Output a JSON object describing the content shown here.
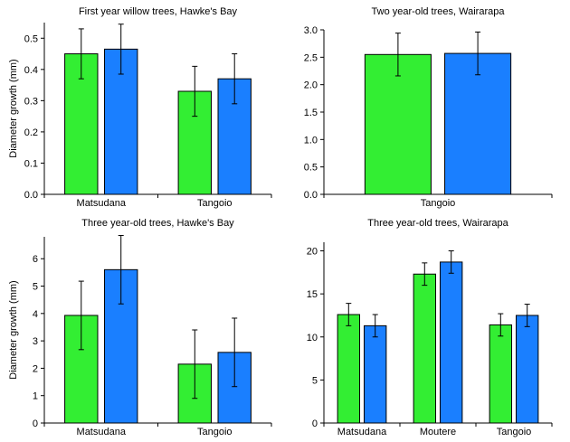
{
  "chart_data": [
    {
      "type": "bar",
      "title": "First year willow trees, Hawke's Bay",
      "ylabel": "Diameter growth (mm)",
      "categories": [
        "Matsudana",
        "Tangoio"
      ],
      "colors": [
        "#33ee33",
        "#1a7fff"
      ],
      "series": [
        {
          "values": [
            0.45,
            0.33
          ],
          "errors": [
            0.08,
            0.08
          ]
        },
        {
          "values": [
            0.465,
            0.37
          ],
          "errors": [
            0.08,
            0.08
          ]
        }
      ],
      "ylim": [
        0,
        0.55
      ],
      "yticks": [
        "0.0",
        "0.1",
        "0.2",
        "0.3",
        "0.4",
        "0.5"
      ],
      "ytick_values": [
        0,
        0.1,
        0.2,
        0.3,
        0.4,
        0.5
      ]
    },
    {
      "type": "bar",
      "title": "Two year-old trees, Wairarapa",
      "ylabel": "",
      "categories": [
        "Tangoio"
      ],
      "colors": [
        "#33ee33",
        "#1a7fff"
      ],
      "series": [
        {
          "values": [
            2.55
          ],
          "errors": [
            0.39
          ]
        },
        {
          "values": [
            2.57
          ],
          "errors": [
            0.39
          ]
        }
      ],
      "ylim": [
        0,
        3.0
      ],
      "yticks": [
        "0.0",
        "0.5",
        "1.0",
        "1.5",
        "2.0",
        "2.5",
        "3.0"
      ],
      "ytick_values": [
        0,
        0.5,
        1.0,
        1.5,
        2.0,
        2.5,
        3.0
      ]
    },
    {
      "type": "bar",
      "title": "Three year-old trees, Hawke's Bay",
      "ylabel": "Diameter growth (mm)",
      "categories": [
        "Matsudana",
        "Tangoio"
      ],
      "colors": [
        "#33ee33",
        "#1a7fff"
      ],
      "series": [
        {
          "values": [
            3.93,
            2.15
          ],
          "errors": [
            1.25,
            1.25
          ]
        },
        {
          "values": [
            5.6,
            2.58
          ],
          "errors": [
            1.25,
            1.25
          ]
        }
      ],
      "ylim": [
        0,
        6.8
      ],
      "yticks": [
        "0",
        "1",
        "2",
        "3",
        "4",
        "5",
        "6"
      ],
      "ytick_values": [
        0,
        1,
        2,
        3,
        4,
        5,
        6
      ]
    },
    {
      "type": "bar",
      "title": "Three year-old trees, Wairarapa",
      "ylabel": "",
      "categories": [
        "Matsudana",
        "Moutere",
        "Tangoio"
      ],
      "colors": [
        "#33ee33",
        "#1a7fff"
      ],
      "series": [
        {
          "values": [
            12.6,
            17.3,
            11.4
          ],
          "errors": [
            1.3,
            1.3,
            1.3
          ]
        },
        {
          "values": [
            11.3,
            18.7,
            12.5
          ],
          "errors": [
            1.3,
            1.3,
            1.3
          ]
        }
      ],
      "ylim": [
        0,
        21
      ],
      "yticks": [
        "0",
        "5",
        "10",
        "15",
        "20"
      ],
      "ytick_values": [
        0,
        5,
        10,
        15,
        20
      ]
    }
  ]
}
